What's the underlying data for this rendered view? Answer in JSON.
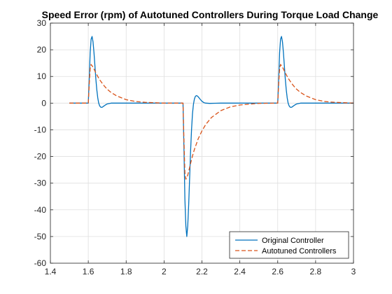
{
  "chart_data": {
    "type": "line",
    "title": "Speed Error (rpm) of Autotuned Controllers During Torque Load Change",
    "xlabel": "",
    "ylabel": "",
    "xlim": [
      1.4,
      3
    ],
    "ylim": [
      -60,
      30
    ],
    "xticks": [
      1.4,
      1.6,
      1.8,
      2,
      2.2,
      2.4,
      2.6,
      2.8,
      3
    ],
    "xtick_labels": [
      "1.4",
      "1.6",
      "1.8",
      "2",
      "2.2",
      "2.4",
      "2.6",
      "2.8",
      "3"
    ],
    "yticks": [
      -60,
      -50,
      -40,
      -30,
      -20,
      -10,
      0,
      10,
      20,
      30
    ],
    "ytick_labels": [
      "-60",
      "-50",
      "-40",
      "-30",
      "-20",
      "-10",
      "0",
      "10",
      "20",
      "30"
    ],
    "grid": true,
    "legend_position": "bottom-right",
    "series": [
      {
        "name": "Original Controller",
        "color": "#0072BD",
        "line_style": "solid",
        "x": [
          1.5,
          1.6,
          1.605,
          1.61,
          1.615,
          1.62,
          1.625,
          1.63,
          1.635,
          1.64,
          1.645,
          1.65,
          1.655,
          1.66,
          1.665,
          1.67,
          1.675,
          1.68,
          1.69,
          1.7,
          1.72,
          1.75,
          1.8,
          2.0,
          2.1,
          2.105,
          2.11,
          2.115,
          2.12,
          2.125,
          2.13,
          2.135,
          2.14,
          2.145,
          2.15,
          2.155,
          2.16,
          2.165,
          2.17,
          2.175,
          2.18,
          2.19,
          2.2,
          2.21,
          2.22,
          2.24,
          2.27,
          2.3,
          2.35,
          2.5,
          2.6,
          2.605,
          2.61,
          2.615,
          2.62,
          2.625,
          2.63,
          2.635,
          2.64,
          2.645,
          2.65,
          2.655,
          2.66,
          2.665,
          2.67,
          2.675,
          2.68,
          2.69,
          2.7,
          2.72,
          2.75,
          2.8,
          3.0
        ],
        "y": [
          0,
          0,
          9,
          19,
          24,
          25,
          23,
          19,
          14,
          9,
          5,
          2,
          0,
          -1,
          -1.5,
          -1.6,
          -1.5,
          -1.2,
          -0.7,
          -0.3,
          0,
          0,
          0,
          0,
          0,
          -17,
          -36,
          -46,
          -50,
          -46,
          -38,
          -28,
          -18,
          -10,
          -4,
          -0.5,
          1.5,
          2.5,
          2.8,
          2.7,
          2.4,
          1.5,
          0.7,
          0.2,
          0,
          -0.1,
          -0.05,
          0,
          0,
          0,
          0,
          9,
          19,
          24,
          25,
          23,
          19,
          14,
          9,
          5,
          2,
          0,
          -1,
          -1.5,
          -1.6,
          -1.5,
          -1.2,
          -0.7,
          -0.3,
          0,
          0,
          0,
          0
        ]
      },
      {
        "name": "Autotuned Controllers",
        "color": "#D95319",
        "line_style": "dashed",
        "x": [
          1.5,
          1.6,
          1.605,
          1.61,
          1.615,
          1.62,
          1.625,
          1.63,
          1.64,
          1.65,
          1.66,
          1.68,
          1.7,
          1.72,
          1.75,
          1.8,
          1.85,
          1.9,
          2.0,
          2.1,
          2.105,
          2.11,
          2.115,
          2.12,
          2.125,
          2.13,
          2.14,
          2.15,
          2.16,
          2.18,
          2.2,
          2.22,
          2.25,
          2.3,
          2.35,
          2.4,
          2.5,
          2.6,
          2.605,
          2.61,
          2.615,
          2.62,
          2.625,
          2.63,
          2.64,
          2.65,
          2.66,
          2.68,
          2.7,
          2.72,
          2.75,
          2.8,
          2.85,
          2.9,
          3.0
        ],
        "y": [
          0,
          0,
          7,
          13,
          14.5,
          14,
          13.5,
          12.8,
          11.3,
          10,
          8.8,
          6.8,
          5.2,
          4,
          2.7,
          1.3,
          0.6,
          0.3,
          0,
          0,
          -14,
          -26,
          -28.5,
          -28,
          -27,
          -25.6,
          -22.6,
          -19.8,
          -17.4,
          -13.4,
          -10.4,
          -8,
          -5.4,
          -2.8,
          -1.4,
          -0.7,
          -0.1,
          0,
          7,
          13,
          14.5,
          14,
          13.5,
          12.8,
          11.3,
          10,
          8.8,
          6.8,
          5.2,
          4,
          2.7,
          1.3,
          0.6,
          0.3,
          0
        ]
      }
    ]
  }
}
